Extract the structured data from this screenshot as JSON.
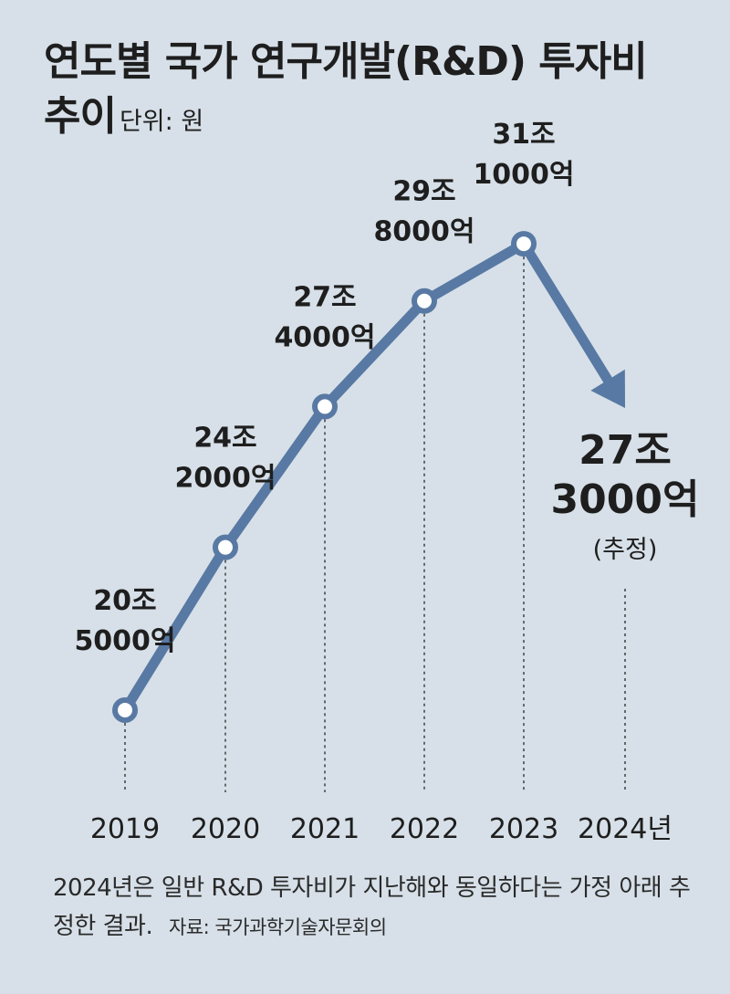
{
  "title_line1": "연도별 국가 연구개발(R&D) 투자비",
  "title_line2": "추이",
  "unit": "단위: 원",
  "chart_data": {
    "type": "line",
    "title": "연도별 국가 연구개발(R&D) 투자비 추이",
    "unit": "단위: 원",
    "categories": [
      "2019",
      "2020",
      "2021",
      "2022",
      "2023",
      "2024년"
    ],
    "values": [
      20.5,
      24.2,
      27.4,
      29.8,
      31.1,
      27.3
    ],
    "value_unit": "조 원",
    "data_labels": [
      [
        "20조",
        "5000억"
      ],
      [
        "24조",
        "2000억"
      ],
      [
        "27조",
        "4000억"
      ],
      [
        "29조",
        "8000억"
      ],
      [
        "31조",
        "1000억"
      ],
      [
        "27조",
        "3000억"
      ]
    ],
    "estimate_note": "(추정)",
    "colors": {
      "line": "#5879a3",
      "marker_fill": "#ffffff",
      "background": "#d7e0e8"
    }
  },
  "footnote": "2024년은 일반 R&D 투자비가 지난해와 동일하다는 가정 아래 추정한 결과.",
  "source": "자료: 국가과학기술자문회의"
}
